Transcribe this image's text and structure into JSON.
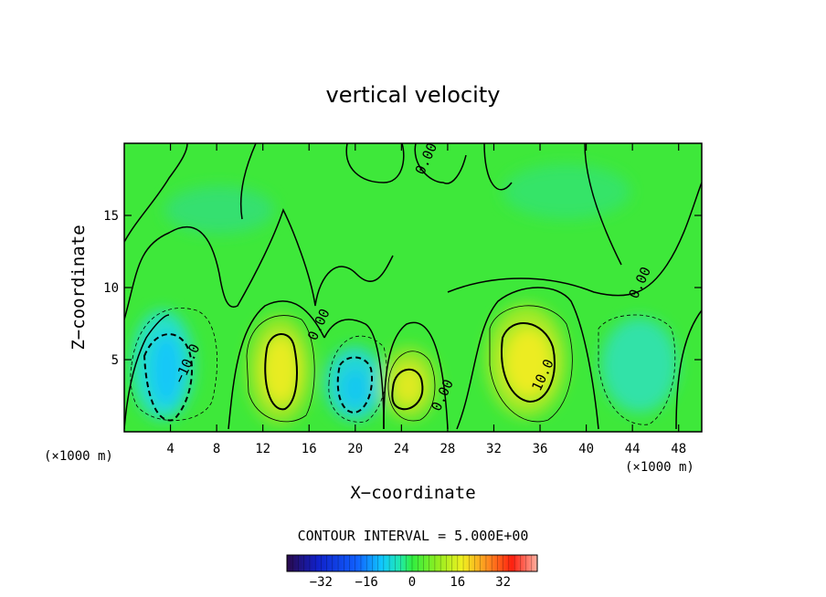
{
  "chart_data": {
    "type": "heatmap",
    "title": "vertical velocity",
    "xlabel": "X−coordinate",
    "ylabel": "Z−coordinate",
    "x_unit": "(×1000 m)",
    "xlim": [
      0,
      50
    ],
    "ylim": [
      0,
      20
    ],
    "x_ticks": [
      4,
      8,
      12,
      16,
      20,
      24,
      28,
      32,
      36,
      40,
      44,
      48
    ],
    "y_ticks": [
      5,
      10,
      15
    ],
    "contour_interval_text": "CONTOUR INTERVAL = 5.000E+00",
    "contour_labels": [
      {
        "text": "−10.0",
        "x": 5.8,
        "z": 4.6
      },
      {
        "text": "0.00",
        "x": 17.2,
        "z": 7.3
      },
      {
        "text": "0.00",
        "x": 27.9,
        "z": 2.4
      },
      {
        "text": "0.00",
        "x": 26.5,
        "z": 18.8
      },
      {
        "text": "10.0",
        "x": 36.6,
        "z": 3.8
      },
      {
        "text": "0.00",
        "x": 45.0,
        "z": 10.2
      }
    ],
    "features": [
      {
        "kind": "downdraft",
        "x": 3.5,
        "z": 4.0,
        "peak": -13
      },
      {
        "kind": "updraft",
        "x": 13.5,
        "z": 4.0,
        "peak": 15
      },
      {
        "kind": "downdraft",
        "x": 19.8,
        "z": 3.0,
        "peak": -12
      },
      {
        "kind": "updraft",
        "x": 24.7,
        "z": 3.0,
        "peak": 12
      },
      {
        "kind": "updraft",
        "x": 34.5,
        "z": 4.5,
        "peak": 16
      },
      {
        "kind": "downdraft",
        "x": 43.5,
        "z": 5.0,
        "peak": -7
      }
    ],
    "colorbar": {
      "range": [
        -44,
        44
      ],
      "ticks": [
        "−32",
        "−16",
        "0",
        "16",
        "32"
      ],
      "tick_values": [
        -32,
        -16,
        0,
        16,
        32
      ]
    }
  }
}
